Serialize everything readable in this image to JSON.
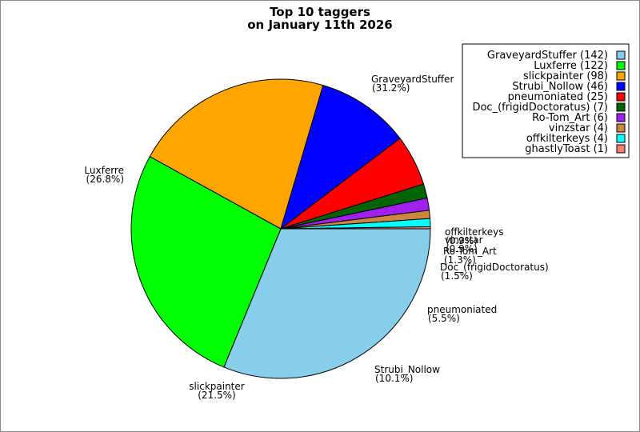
{
  "chart_data": {
    "type": "pie",
    "title": [
      "Top 10 taggers",
      "on January 11th 2026"
    ],
    "slices": [
      {
        "name": "GraveyardStuffer",
        "value": 142,
        "percent_label": "(31.2%)",
        "legend_label": "GraveyardStuffer (142)",
        "color": "#87ceeb"
      },
      {
        "name": "Luxferre",
        "value": 122,
        "percent_label": "(26.8%)",
        "legend_label": "Luxferre (122)",
        "color": "#00ff00"
      },
      {
        "name": "slickpainter",
        "value": 98,
        "percent_label": "(21.5%)",
        "legend_label": "slickpainter (98)",
        "color": "#ffa500"
      },
      {
        "name": "Strubi_Nollow",
        "value": 46,
        "percent_label": "(10.1%)",
        "legend_label": "Strubi_Nollow (46)",
        "color": "#0000ff"
      },
      {
        "name": "pneumoniated",
        "value": 25,
        "percent_label": "(5.5%)",
        "legend_label": "pneumoniated (25)",
        "color": "#ff0000"
      },
      {
        "name": "Doc_(frigidDoctoratus)",
        "value": 7,
        "percent_label": "(1.5%)",
        "legend_label": "Doc_(frigidDoctoratus) (7)",
        "color": "#006400"
      },
      {
        "name": "Ro-Tom_Art",
        "value": 6,
        "percent_label": "(1.3%)",
        "legend_label": "Ro-Tom_Art (6)",
        "color": "#a020f0"
      },
      {
        "name": "vinzstar",
        "value": 4,
        "percent_label": "(0.9%)",
        "legend_label": "vinzstar (4)",
        "color": "#cd853f"
      },
      {
        "name": "offkilterkeys",
        "value": 4,
        "percent_label": "(0.9%)",
        "legend_label": "offkilterkeys (4)",
        "color": "#00ffff"
      },
      {
        "name": "ghastlyToast",
        "value": 1,
        "percent_label": "",
        "legend_label": "ghastlyToast (1)",
        "color": "#fa8072"
      }
    ],
    "start_angle_deg": 0,
    "direction": "clockwise",
    "legend_position": "top-right"
  }
}
